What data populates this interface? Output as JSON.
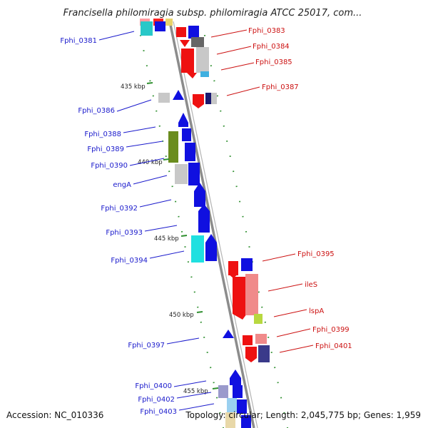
{
  "title": "Francisella philomiragia subsp. philomiragia ATCC 25017, com...",
  "footer": {
    "accession": "Accession: NC_010336",
    "summary": "Topology: circular; Length: 2,045,775 bp; Genes: 1,959"
  },
  "colors": {
    "backbone": "#8c8c8c",
    "left_label": "#1a1acc",
    "right_label": "#cc1111",
    "tick": "#2f8f2f"
  },
  "kbp_marks": [
    "435 kbp",
    "440 kbp",
    "445 kbp",
    "450 kbp",
    "455 kbp"
  ],
  "left_labels": [
    "Fphi_0381",
    "Fphi_0386",
    "Fphi_0388",
    "Fphi_0389",
    "Fphi_0390",
    "engA",
    "Fphi_0392",
    "Fphi_0393",
    "Fphi_0394",
    "Fphi_0397",
    "Fphi_0400",
    "Fphi_0402",
    "Fphi_0403"
  ],
  "right_labels": [
    "Fphi_0383",
    "Fphi_0384",
    "Fphi_0385",
    "Fphi_0387",
    "Fphi_0395",
    "ileS",
    "lspA",
    "Fphi_0399",
    "Fphi_0401"
  ]
}
